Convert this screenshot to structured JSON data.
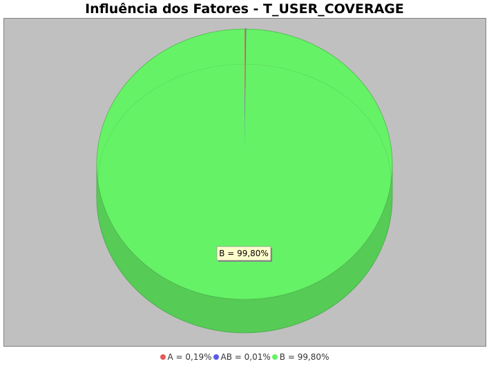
{
  "chart_data": {
    "type": "pie",
    "title": "Influência dos Fatores - T_USER_COVERAGE",
    "style": "3d",
    "plot_background": "#c0c0c0",
    "slices": [
      {
        "label": "A",
        "percent": 0.19,
        "display": "A = 0,19%",
        "color": "#e65a5a"
      },
      {
        "label": "AB",
        "percent": 0.01,
        "display": "AB = 0,01%",
        "color": "#5a5ae6"
      },
      {
        "label": "B",
        "percent": 99.8,
        "display": "B = 99,80%",
        "color": "#66f266"
      }
    ],
    "data_label": "B = 99,80%",
    "legend_position": "bottom"
  }
}
